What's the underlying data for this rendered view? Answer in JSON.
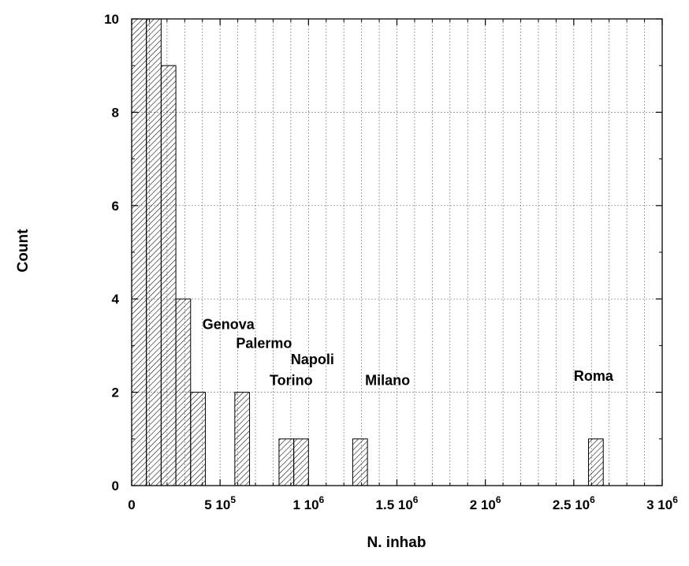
{
  "chart_data": {
    "type": "bar",
    "xlabel": "N. inhab",
    "ylabel": "Count",
    "xlim": [
      0,
      3000000
    ],
    "ylim": [
      0,
      10
    ],
    "bin_width": 83333,
    "x_ticks": [
      {
        "value": 0,
        "label": "0"
      },
      {
        "value": 500000,
        "label": "5 10^5"
      },
      {
        "value": 1000000,
        "label": "1 10^6"
      },
      {
        "value": 1500000,
        "label": "1.5 10^6"
      },
      {
        "value": 2000000,
        "label": "2 10^6"
      },
      {
        "value": 2500000,
        "label": "2.5 10^6"
      },
      {
        "value": 3000000,
        "label": "3 10^6"
      }
    ],
    "y_ticks": [
      0,
      2,
      4,
      6,
      8,
      10
    ],
    "grid": true,
    "bars": [
      {
        "x_start": 0,
        "count": 10
      },
      {
        "x_start": 83333,
        "count": 10
      },
      {
        "x_start": 166667,
        "count": 9
      },
      {
        "x_start": 250000,
        "count": 4
      },
      {
        "x_start": 333333,
        "count": 2
      },
      {
        "x_start": 583333,
        "count": 2
      },
      {
        "x_start": 833333,
        "count": 1
      },
      {
        "x_start": 916667,
        "count": 1
      },
      {
        "x_start": 1250000,
        "count": 1
      },
      {
        "x_start": 2583333,
        "count": 1
      }
    ],
    "annotations": [
      {
        "text": "Genova",
        "x": 400000,
        "y": 3.35
      },
      {
        "text": "Palermo",
        "x": 590000,
        "y": 2.95
      },
      {
        "text": "Napoli",
        "x": 900000,
        "y": 2.6
      },
      {
        "text": "Torino",
        "x": 780000,
        "y": 2.15
      },
      {
        "text": "Milano",
        "x": 1320000,
        "y": 2.15
      },
      {
        "text": "Roma",
        "x": 2500000,
        "y": 2.25
      }
    ],
    "bar_fill": "hatched",
    "bar_color": "#000000"
  }
}
